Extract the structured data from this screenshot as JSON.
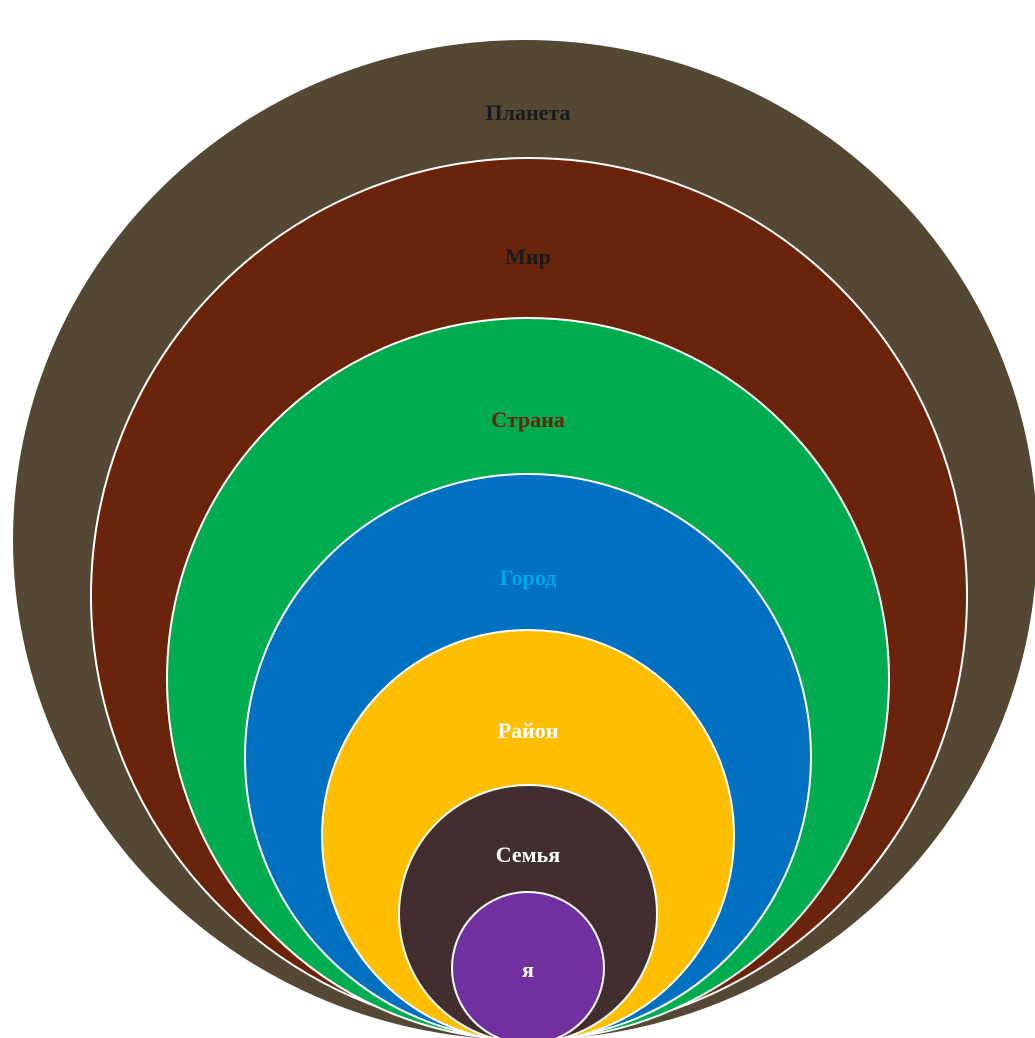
{
  "rings": [
    {
      "key": "planet",
      "label": "Планета",
      "fill": "#544834",
      "text_color": "#1a1a1a",
      "stroke": "none"
    },
    {
      "key": "world",
      "label": "Мир",
      "fill": "#6b240c",
      "text_color": "#1a1a1a",
      "stroke": "#ffffff"
    },
    {
      "key": "country",
      "label": "Страна",
      "fill": "#00ac50",
      "text_color": "#6b240c",
      "stroke": "#ffffff"
    },
    {
      "key": "city",
      "label": "Город",
      "fill": "#0070c0",
      "text_color": "#00a6e6",
      "stroke": "#ffffff"
    },
    {
      "key": "district",
      "label": "Район",
      "fill": "#ffbe00",
      "text_color": "#ffffff",
      "stroke": "#ffffff"
    },
    {
      "key": "family",
      "label": "Семья",
      "fill": "#422e2e",
      "text_color": "#ffffff",
      "stroke": "#ffffff"
    },
    {
      "key": "me",
      "label": "я",
      "fill": "#7030a0",
      "text_color": "#ffffff",
      "stroke": "#ffffff"
    }
  ]
}
